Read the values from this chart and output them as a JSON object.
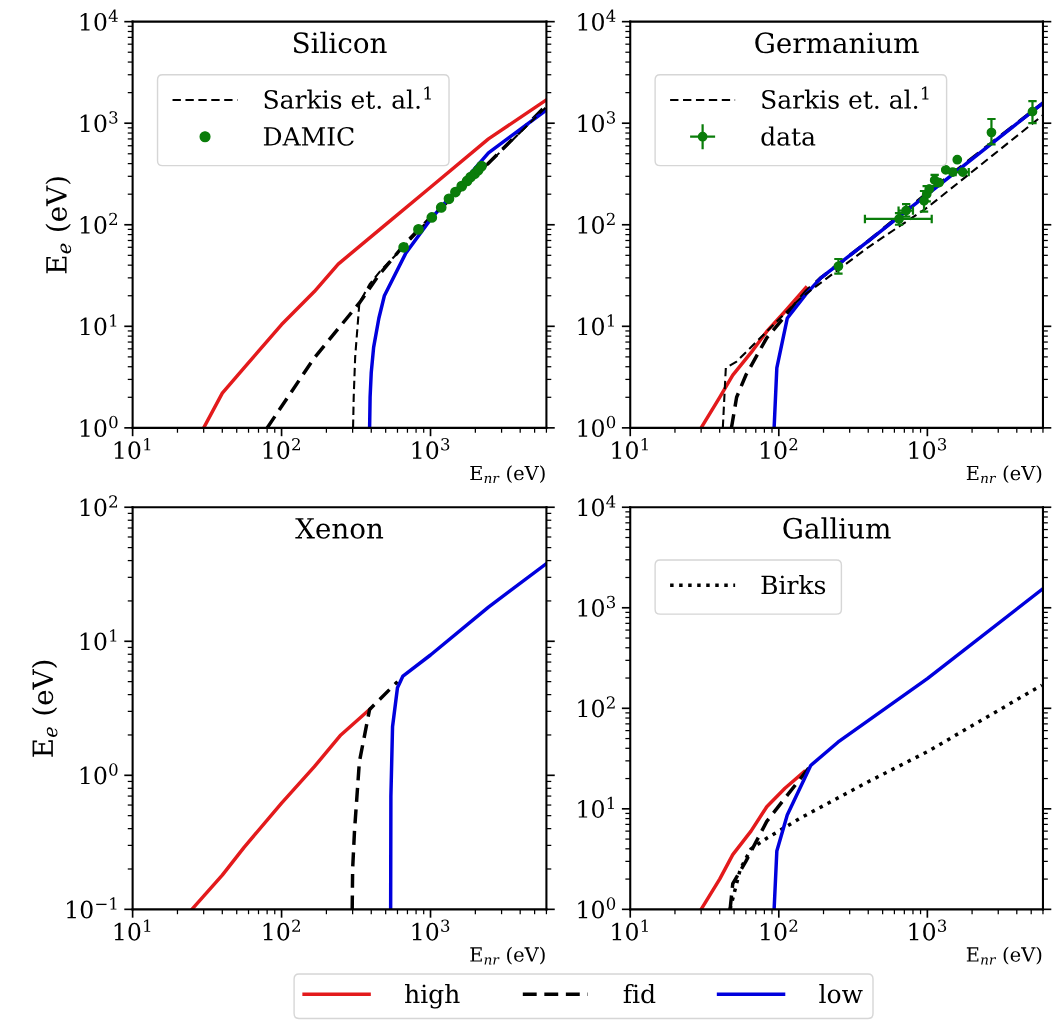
{
  "chart_data": [
    {
      "type": "line",
      "title": "Silicon",
      "xlabel": "E$_{nr}$ (eV)",
      "ylabel": "E$_{e}$ (eV)",
      "log": "xy",
      "legend": "top left",
      "grid": false,
      "xlim": [
        10,
        6000
      ],
      "ylim": [
        1,
        10000
      ],
      "xticks": [
        {
          "value": 10,
          "label": "10$^{1}$"
        },
        {
          "value": 100,
          "label": "10$^{2}$"
        },
        {
          "value": 1000,
          "label": "10$^{3}$"
        }
      ],
      "yticks": [
        {
          "value": 1,
          "label": "10$^{0}$"
        },
        {
          "value": 10,
          "label": "10$^{1}$"
        },
        {
          "value": 100,
          "label": "10$^{2}$"
        },
        {
          "value": 1000,
          "label": "10$^{3}$"
        },
        {
          "value": 10000,
          "label": "10$^{4}$"
        }
      ],
      "series": [
        {
          "color": "#e31a1c",
          "line_style": "solid",
          "x": [
            30,
            40,
            56,
            100,
            166,
            240,
            490,
            1000,
            2450,
            6000
          ],
          "values": [
            1,
            2.2,
            3.9,
            10.4,
            22,
            41,
            98,
            234,
            700,
            1700
          ]
        },
        {
          "color": "#000000",
          "line_style": "dashed",
          "x": [
            80,
            166,
            333,
            450,
            680,
            1000,
            2000,
            6000
          ],
          "values": [
            1,
            4.9,
            17,
            32,
            66,
            118,
            300,
            1500
          ]
        },
        {
          "color": "#0000dd",
          "line_style": "solid",
          "x": [
            390,
            393,
            400,
            415,
            450,
            490,
            680,
            1000,
            2450,
            6000
          ],
          "values": [
            1,
            2,
            3.5,
            6.2,
            12,
            20,
            52,
            113,
            510,
            1350
          ]
        },
        {
          "name": "Sarkis et. al.$^{1}$",
          "color": "#000000",
          "line_style": "dashed",
          "x": [
            302,
            305,
            312,
            333,
            390,
            460,
            700,
            1000,
            2000,
            6000
          ],
          "values": [
            1,
            2,
            5,
            17,
            26,
            35,
            66,
            118,
            300,
            1450
          ]
        },
        {
          "name": "DAMIC",
          "type": "scatter",
          "marker": "circle",
          "color": "#0a7d0a",
          "x": [
            660,
            830,
            1020,
            1180,
            1330,
            1470,
            1620,
            1760,
            1860,
            1980,
            2090,
            2200
          ],
          "values": [
            60,
            90,
            118,
            148,
            180,
            210,
            240,
            270,
            295,
            318,
            345,
            378
          ]
        }
      ]
    },
    {
      "type": "line",
      "title": "Germanium",
      "xlabel": "E$_{nr}$ (eV)",
      "log": "xy",
      "legend": "top left",
      "grid": false,
      "xlim": [
        10,
        6000
      ],
      "ylim": [
        1,
        10000
      ],
      "xticks": [
        {
          "value": 10,
          "label": "10$^{1}$"
        },
        {
          "value": 100,
          "label": "10$^{2}$"
        },
        {
          "value": 1000,
          "label": "10$^{3}$"
        }
      ],
      "yticks": [
        {
          "value": 1,
          "label": "10$^{0}$"
        },
        {
          "value": 10,
          "label": "10$^{1}$"
        },
        {
          "value": 100,
          "label": "10$^{2}$"
        },
        {
          "value": 1000,
          "label": "10$^{3}$"
        },
        {
          "value": 10000,
          "label": "10$^{4}$"
        }
      ],
      "series": [
        {
          "color": "#e31a1c",
          "line_style": "solid",
          "x": [
            30,
            40,
            49,
            65,
            83,
            110,
            152
          ],
          "values": [
            1,
            2,
            3.3,
            5.5,
            8.9,
            14,
            24
          ]
        },
        {
          "color": "#000000",
          "line_style": "dashed",
          "x": [
            48,
            52,
            60,
            83,
            152,
            192,
            400,
            1000,
            6000
          ],
          "values": [
            1,
            2,
            3.3,
            7.7,
            22,
            30,
            69,
            205,
            1580
          ]
        },
        {
          "color": "#0000dd",
          "line_style": "solid",
          "x": [
            93,
            97,
            114,
            152,
            192,
            400,
            6000
          ],
          "values": [
            1,
            3.9,
            12,
            20.6,
            30,
            69,
            1580
          ]
        },
        {
          "name": "Sarkis et. al.$^{1}$",
          "color": "#000000",
          "line_style": "dashed",
          "x": [
            42,
            44,
            52,
            83,
            140,
            400,
            1000,
            6000
          ],
          "values": [
            1,
            3.9,
            4.5,
            8.9,
            19,
            60,
            148,
            1200
          ]
        },
        {
          "name": "data",
          "type": "scatter",
          "marker": "circle",
          "color": "#0a7d0a",
          "x": [
            252,
            645,
            720,
            950,
            990,
            1030,
            1120,
            1200,
            1330,
            1480,
            1590,
            1730,
            2700,
            5100
          ],
          "values": [
            39,
            114,
            138,
            172,
            200,
            225,
            275,
            260,
            347,
            330,
            437,
            330,
            810,
            1300
          ],
          "errors": [
            [
              33,
              46
            ],
            [
              100,
              130
            ],
            [
              120,
              160
            ],
            [
              135,
              215
            ],
            [
              170,
              240
            ],
            null,
            [
              240,
              310
            ],
            null,
            null,
            null,
            null,
            null,
            [
              620,
              1100
            ],
            [
              1000,
              1650
            ]
          ],
          "xerrors": [
            null,
            [
              380,
              1070
            ],
            [
              640,
              800
            ],
            null,
            null,
            null,
            null,
            null,
            null,
            null,
            null,
            [
              1550,
              1900
            ],
            null,
            null
          ]
        }
      ]
    },
    {
      "type": "line",
      "title": "Xenon",
      "xlabel": "E$_{nr}$ (eV)",
      "ylabel": "E$_{e}$ (eV)",
      "log": "xy",
      "legend": "bottom",
      "grid": false,
      "xlim": [
        10,
        6000
      ],
      "ylim": [
        0.1,
        100
      ],
      "xticks": [
        {
          "value": 10,
          "label": "10$^{1}$"
        },
        {
          "value": 100,
          "label": "10$^{2}$"
        },
        {
          "value": 1000,
          "label": "10$^{3}$"
        }
      ],
      "yticks": [
        {
          "value": 0.1,
          "label": "10$^{−1}$"
        },
        {
          "value": 1,
          "label": "10$^{0}$"
        },
        {
          "value": 10,
          "label": "10$^{1}$"
        },
        {
          "value": 100,
          "label": "10$^{2}$"
        }
      ],
      "series": [
        {
          "name": "high",
          "color": "#e31a1c",
          "line_style": "solid",
          "x": [
            25,
            40,
            56,
            100,
            166,
            250,
            390
          ],
          "values": [
            0.1,
            0.18,
            0.29,
            0.62,
            1.16,
            2.0,
            3.1
          ]
        },
        {
          "name": "fid",
          "color": "#000000",
          "line_style": "dashed",
          "x": [
            298,
            300,
            309,
            333,
            390,
            600
          ],
          "values": [
            0.1,
            0.2,
            0.39,
            1.26,
            3.1,
            5.0
          ]
        },
        {
          "name": "low",
          "color": "#0000dd",
          "line_style": "solid",
          "x": [
            540,
            542,
            556,
            600,
            653,
            1000,
            2450,
            6000
          ],
          "values": [
            0.1,
            0.7,
            2.3,
            4.5,
            5.5,
            7.9,
            18,
            38
          ]
        }
      ]
    },
    {
      "type": "line",
      "title": "Gallium",
      "xlabel": "E$_{nr}$ (eV)",
      "log": "xy",
      "legend": "top left",
      "grid": false,
      "xlim": [
        10,
        6000
      ],
      "ylim": [
        1,
        10000
      ],
      "xticks": [
        {
          "value": 10,
          "label": "10$^{1}$"
        },
        {
          "value": 100,
          "label": "10$^{2}$"
        },
        {
          "value": 1000,
          "label": "10$^{3}$"
        }
      ],
      "yticks": [
        {
          "value": 1,
          "label": "10$^{0}$"
        },
        {
          "value": 10,
          "label": "10$^{1}$"
        },
        {
          "value": 100,
          "label": "10$^{2}$"
        },
        {
          "value": 1000,
          "label": "10$^{3}$"
        },
        {
          "value": 10000,
          "label": "10$^{4}$"
        }
      ],
      "series": [
        {
          "color": "#e31a1c",
          "line_style": "solid",
          "x": [
            30,
            40,
            49,
            65,
            83,
            110,
            148
          ],
          "values": [
            1,
            2,
            3.5,
            6,
            10.5,
            16,
            23.4
          ]
        },
        {
          "color": "#000000",
          "line_style": "dashed",
          "x": [
            47,
            49,
            60,
            83,
            164
          ],
          "values": [
            1,
            1.8,
            3.0,
            7.5,
            27
          ]
        },
        {
          "name": "Birks",
          "color": "#000000",
          "line_style": "dotted",
          "x": [
            47,
            55,
            65,
            83,
            140,
            400,
            1000,
            5900
          ],
          "values": [
            1,
            2.5,
            4,
            5.1,
            8.1,
            18.6,
            37,
            170
          ]
        },
        {
          "color": "#0000dd",
          "line_style": "solid",
          "x": [
            93,
            97,
            114,
            164,
            250,
            1000,
            6000
          ],
          "values": [
            1,
            3.8,
            8.7,
            27,
            46,
            197,
            1550
          ]
        }
      ]
    }
  ]
}
